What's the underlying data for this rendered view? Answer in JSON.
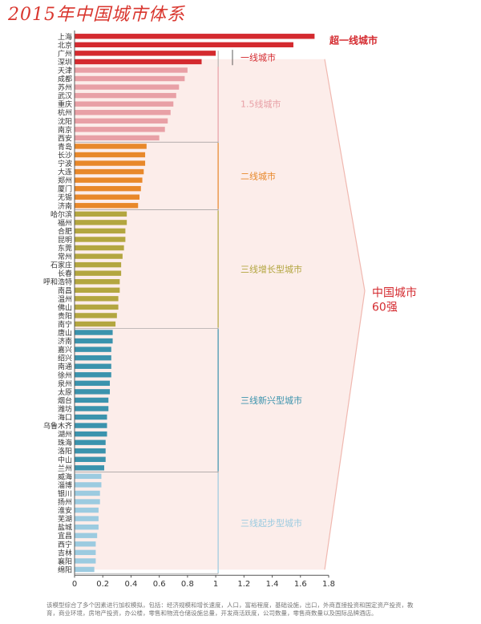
{
  "chart_data": {
    "type": "bar",
    "orientation": "horizontal",
    "title": "2015年中国城市体系",
    "xlim": [
      0,
      1.8
    ],
    "x_ticks": [
      "0",
      "0.2",
      "0.4",
      "0.6",
      "0.8",
      "1",
      "1.2",
      "1.4",
      "1.6",
      "1.8"
    ],
    "grid": false,
    "categories": [
      "上海",
      "北京",
      "广州",
      "深圳",
      "天津",
      "成都",
      "苏州",
      "武汉",
      "重庆",
      "杭州",
      "沈阳",
      "南京",
      "西安",
      "青岛",
      "长沙",
      "宁波",
      "大连",
      "郑州",
      "厦门",
      "无锡",
      "济南",
      "哈尔滨",
      "福州",
      "合肥",
      "昆明",
      "东莞",
      "常州",
      "石家庄",
      "长春",
      "呼和浩特",
      "南昌",
      "温州",
      "佛山",
      "贵阳",
      "南宁",
      "唐山",
      "济南",
      "嘉兴",
      "绍兴",
      "南通",
      "徐州",
      "泉州",
      "太原",
      "烟台",
      "潍坊",
      "海口",
      "乌鲁木齐",
      "湖州",
      "珠海",
      "洛阳",
      "中山",
      "兰州",
      "威海",
      "淄博",
      "银川",
      "扬州",
      "淮安",
      "芜湖",
      "盐城",
      "宜昌",
      "西宁",
      "吉林",
      "襄阳",
      "绵阳"
    ],
    "values": [
      1.7,
      1.55,
      1.0,
      0.9,
      0.8,
      0.78,
      0.74,
      0.72,
      0.7,
      0.68,
      0.66,
      0.64,
      0.6,
      0.51,
      0.5,
      0.5,
      0.49,
      0.48,
      0.47,
      0.46,
      0.45,
      0.37,
      0.37,
      0.36,
      0.36,
      0.35,
      0.34,
      0.33,
      0.33,
      0.32,
      0.32,
      0.31,
      0.31,
      0.3,
      0.29,
      0.27,
      0.27,
      0.26,
      0.26,
      0.26,
      0.26,
      0.25,
      0.25,
      0.24,
      0.24,
      0.23,
      0.23,
      0.23,
      0.22,
      0.22,
      0.22,
      0.21,
      0.19,
      0.19,
      0.18,
      0.18,
      0.17,
      0.17,
      0.17,
      0.16,
      0.15,
      0.15,
      0.15,
      0.14
    ],
    "groups": [
      {
        "label": "超一线城市",
        "start": 0,
        "end": 1,
        "color": "#d42a2f"
      },
      {
        "label": "一线城市",
        "start": 2,
        "end": 3,
        "color": "#d42a2f"
      },
      {
        "label": "1.5线城市",
        "start": 4,
        "end": 12,
        "color": "#e8a0a6"
      },
      {
        "label": "二线城市",
        "start": 13,
        "end": 20,
        "color": "#e8882a"
      },
      {
        "label": "三线增长型城市",
        "start": 21,
        "end": 34,
        "color": "#b3a640"
      },
      {
        "label": "三线新兴型城市",
        "start": 35,
        "end": 51,
        "color": "#3b93ad"
      },
      {
        "label": "三线起步型城市",
        "start": 52,
        "end": 63,
        "color": "#9ccbe0"
      }
    ],
    "annotation": {
      "label_line1": "中国城市",
      "label_line2": "60强",
      "color": "#d42a2f"
    }
  },
  "footnote": "该模型综合了多个因素进行加权模拟，包括：经济规模和增长速度，人口，富裕程度，基础设施，出口，外商直接投资和国定资产投资，教育，商业环境，房地产投资，办公楼，零售和物流仓储设施总量，开发商活跃度，公司数量，零售商数量以及国际品牌酒店。"
}
